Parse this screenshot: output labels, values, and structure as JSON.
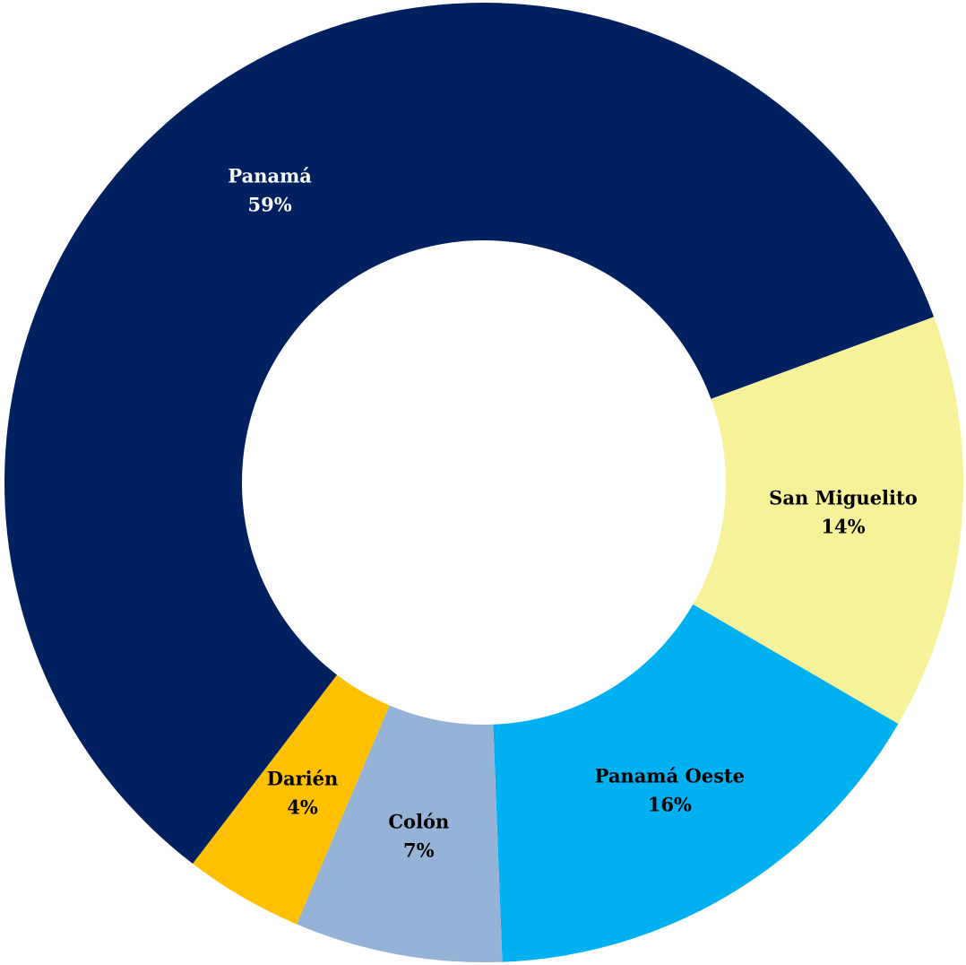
{
  "chart_data": {
    "type": "donut",
    "categories": [
      "San Miguelito",
      "Panamá Oeste",
      "Colón",
      "Darién",
      "Panamá"
    ],
    "values": [
      14,
      16,
      7,
      4,
      59
    ],
    "value_labels": [
      "14%",
      "16%",
      "7%",
      "4%",
      "59%"
    ],
    "colors": [
      "#f5f29a",
      "#00b0f0",
      "#95b3d7",
      "#ffc000",
      "#002060"
    ]
  }
}
